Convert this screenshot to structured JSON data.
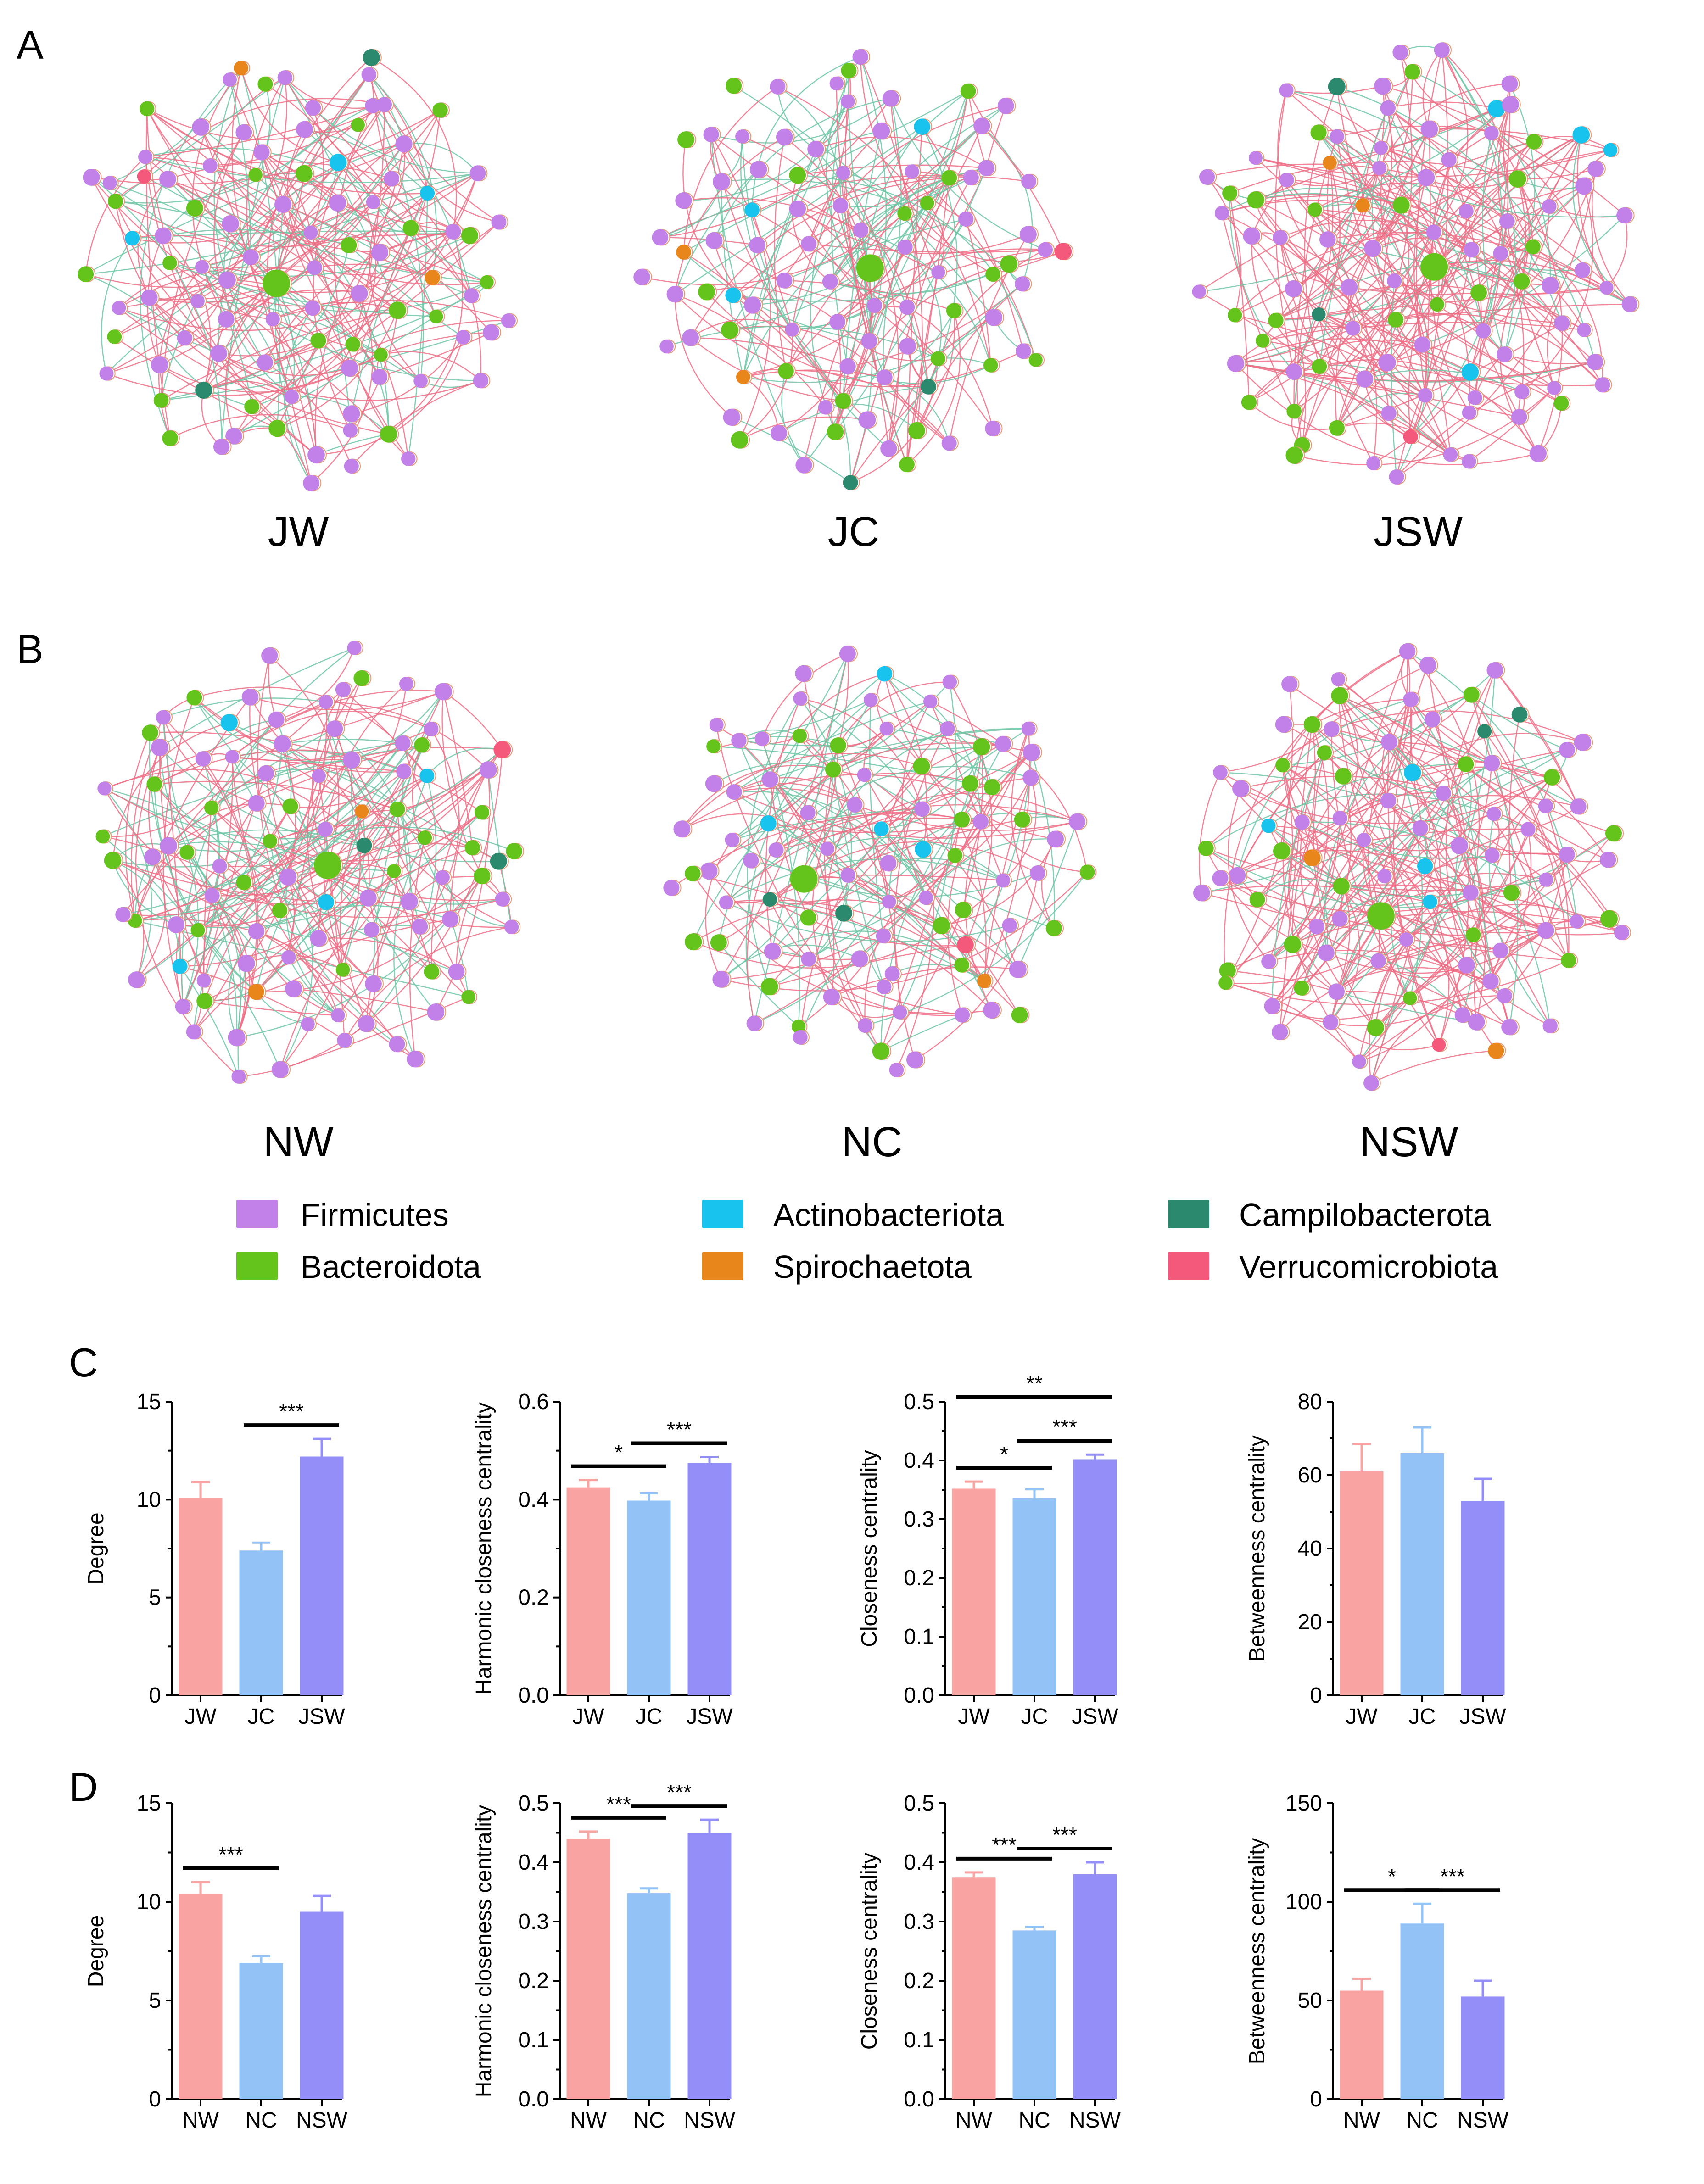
{
  "panels": {
    "A": "A",
    "B": "B",
    "C": "C",
    "D": "D"
  },
  "networks": [
    {
      "label": "JW",
      "seed": 11,
      "pos_ratio": 0.68,
      "dense": 0.6,
      "nodes": {
        "Firmicutes": 60,
        "Bacteroidota": 26,
        "Actinobacteriota": 3,
        "Campilobacterota": 2,
        "Spirochaetota": 2,
        "Verrucomicrobiota": 1
      }
    },
    {
      "label": "JC",
      "seed": 23,
      "pos_ratio": 0.62,
      "dense": 0.35,
      "nodes": {
        "Firmicutes": 58,
        "Bacteroidota": 23,
        "Actinobacteriota": 3,
        "Campilobacterota": 2,
        "Spirochaetota": 2,
        "Verrucomicrobiota": 1
      }
    },
    {
      "label": "JSW",
      "seed": 37,
      "pos_ratio": 0.82,
      "dense": 0.75,
      "nodes": {
        "Firmicutes": 63,
        "Bacteroidota": 24,
        "Actinobacteriota": 4,
        "Campilobacterota": 2,
        "Spirochaetota": 2,
        "Verrucomicrobiota": 1
      }
    },
    {
      "label": "NW",
      "seed": 41,
      "pos_ratio": 0.66,
      "dense": 0.6,
      "nodes": {
        "Firmicutes": 60,
        "Bacteroidota": 27,
        "Actinobacteriota": 4,
        "Campilobacterota": 2,
        "Spirochaetota": 2,
        "Verrucomicrobiota": 1
      }
    },
    {
      "label": "NC",
      "seed": 53,
      "pos_ratio": 0.6,
      "dense": 0.35,
      "nodes": {
        "Firmicutes": 57,
        "Bacteroidota": 25,
        "Actinobacteriota": 4,
        "Campilobacterota": 2,
        "Spirochaetota": 1,
        "Verrucomicrobiota": 1
      }
    },
    {
      "label": "NSW",
      "seed": 67,
      "pos_ratio": 0.8,
      "dense": 0.65,
      "nodes": {
        "Firmicutes": 58,
        "Bacteroidota": 24,
        "Actinobacteriota": 4,
        "Campilobacterota": 2,
        "Spirochaetota": 2,
        "Verrucomicrobiota": 1
      }
    }
  ],
  "legend": [
    {
      "name": "Firmicutes",
      "color": "#c181e8"
    },
    {
      "name": "Bacteroidota",
      "color": "#64c41c"
    },
    {
      "name": "Actinobacteriota",
      "color": "#18c4ee"
    },
    {
      "name": "Spirochaetota",
      "color": "#e8861c"
    },
    {
      "name": "Campilobacterota",
      "color": "#2b8a6e"
    },
    {
      "name": "Verrucomicrobiota",
      "color": "#f4587a"
    }
  ],
  "edge_colors": {
    "positive": "#ef6f86",
    "negative": "#6fc7a6"
  },
  "bar_colors": [
    "#f9a3a3",
    "#93c2f7",
    "#948ff8"
  ],
  "chart_data": [
    {
      "type": "bar",
      "panel": "C",
      "categories": [
        "JW",
        "JC",
        "JSW"
      ],
      "values": [
        10.1,
        7.4,
        12.2
      ],
      "errors": [
        0.8,
        0.4,
        0.9
      ],
      "title": "",
      "xlabel": "",
      "ylabel": "Degree",
      "ylim": [
        0,
        15
      ],
      "yticks": [
        "0",
        "5",
        "10",
        "15"
      ],
      "significance": [
        {
          "from": 1,
          "to": 2,
          "label": "***"
        }
      ]
    },
    {
      "type": "bar",
      "panel": "C",
      "categories": [
        "JW",
        "JC",
        "JSW"
      ],
      "values": [
        0.425,
        0.398,
        0.475
      ],
      "errors": [
        0.015,
        0.015,
        0.012
      ],
      "title": "",
      "xlabel": "",
      "ylabel": "Harmonic closeness centrality",
      "ylim": [
        0,
        0.6
      ],
      "yticks": [
        "0.0",
        "0.2",
        "0.4",
        "0.6"
      ],
      "significance": [
        {
          "from": 0,
          "to": 1,
          "label": "*"
        },
        {
          "from": 1,
          "to": 2,
          "label": "***"
        }
      ]
    },
    {
      "type": "bar",
      "panel": "C",
      "categories": [
        "JW",
        "JC",
        "JSW"
      ],
      "values": [
        0.352,
        0.336,
        0.402
      ],
      "errors": [
        0.012,
        0.015,
        0.008
      ],
      "title": "",
      "xlabel": "",
      "ylabel": "Closeness centrality",
      "ylim": [
        0,
        0.5
      ],
      "yticks": [
        "0.0",
        "0.1",
        "0.2",
        "0.3",
        "0.4",
        "0.5"
      ],
      "significance": [
        {
          "from": 0,
          "to": 1,
          "label": "*"
        },
        {
          "from": 1,
          "to": 2,
          "label": "***"
        },
        {
          "from": 0,
          "to": 2,
          "label": "**"
        }
      ]
    },
    {
      "type": "bar",
      "panel": "C",
      "categories": [
        "JW",
        "JC",
        "JSW"
      ],
      "values": [
        61,
        66,
        53
      ],
      "errors": [
        7.5,
        7,
        6
      ],
      "title": "",
      "xlabel": "",
      "ylabel": "Betweenness centrality",
      "ylim": [
        0,
        80
      ],
      "yticks": [
        "0",
        "20",
        "40",
        "60",
        "80"
      ],
      "significance": []
    },
    {
      "type": "bar",
      "panel": "D",
      "categories": [
        "NW",
        "NC",
        "NSW"
      ],
      "values": [
        10.4,
        6.9,
        9.5
      ],
      "errors": [
        0.6,
        0.35,
        0.8
      ],
      "title": "",
      "xlabel": "",
      "ylabel": "Degree",
      "ylim": [
        0,
        15
      ],
      "yticks": [
        "0",
        "5",
        "10",
        "15"
      ],
      "significance": [
        {
          "from": 0,
          "to": 1,
          "label": "***"
        }
      ]
    },
    {
      "type": "bar",
      "panel": "D",
      "categories": [
        "NW",
        "NC",
        "NSW"
      ],
      "values": [
        0.44,
        0.348,
        0.45
      ],
      "errors": [
        0.012,
        0.008,
        0.022
      ],
      "title": "",
      "xlabel": "",
      "ylabel": "Harmonic closeness centrality",
      "ylim": [
        0,
        0.5
      ],
      "yticks": [
        "0.0",
        "0.1",
        "0.2",
        "0.3",
        "0.4",
        "0.5"
      ],
      "significance": [
        {
          "from": 0,
          "to": 1,
          "label": "***"
        },
        {
          "from": 1,
          "to": 2,
          "label": "***"
        }
      ]
    },
    {
      "type": "bar",
      "panel": "D",
      "categories": [
        "NW",
        "NC",
        "NSW"
      ],
      "values": [
        0.375,
        0.285,
        0.38
      ],
      "errors": [
        0.008,
        0.006,
        0.02
      ],
      "title": "",
      "xlabel": "",
      "ylabel": "Closeness centrality",
      "ylim": [
        0,
        0.5
      ],
      "yticks": [
        "0.0",
        "0.1",
        "0.2",
        "0.3",
        "0.4",
        "0.5"
      ],
      "significance": [
        {
          "from": 0,
          "to": 1,
          "label": "***"
        },
        {
          "from": 1,
          "to": 2,
          "label": "***"
        }
      ]
    },
    {
      "type": "bar",
      "panel": "D",
      "categories": [
        "NW",
        "NC",
        "NSW"
      ],
      "values": [
        55,
        89,
        52
      ],
      "errors": [
        6,
        10,
        8
      ],
      "title": "",
      "xlabel": "",
      "ylabel": "Betweenness centrality",
      "ylim": [
        0,
        150
      ],
      "yticks": [
        "0",
        "50",
        "100",
        "150"
      ],
      "significance": [
        {
          "from": 0,
          "to": 1,
          "label": "*"
        },
        {
          "from": 1,
          "to": 2,
          "label": "***"
        }
      ]
    }
  ]
}
